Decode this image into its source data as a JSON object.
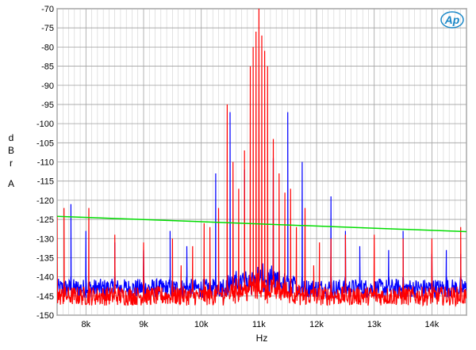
{
  "chart_data": {
    "type": "line",
    "title": "",
    "xlabel": "Hz",
    "ylabel": "dBrA",
    "ylabel_chars": [
      "d",
      "B",
      "r",
      "A"
    ],
    "xlim": [
      7500,
      14600
    ],
    "ylim": [
      -150,
      -70
    ],
    "grid": true,
    "x_major_ticks": [
      8000,
      9000,
      10000,
      11000,
      12000,
      13000,
      14000
    ],
    "x_tick_labels": [
      "8k",
      "9k",
      "10k",
      "11k",
      "12k",
      "13k",
      "14k"
    ],
    "y_ticks": [
      -70,
      -75,
      -80,
      -85,
      -90,
      -95,
      -100,
      -105,
      -110,
      -115,
      -120,
      -125,
      -130,
      -135,
      -140,
      -145,
      -150
    ],
    "y_tick_labels": [
      "-70",
      "-75",
      "-80",
      "-85",
      "-90",
      "-95",
      "-100",
      "-105",
      "-110",
      "-115",
      "-120",
      "-125",
      "-130",
      "-135",
      "-140",
      "-145",
      "-150"
    ],
    "series": [
      {
        "color": "#0000ff",
        "noise_floor": -143,
        "values_x": [
          7740,
          8000,
          8500,
          9000,
          9460,
          9750,
          10250,
          10500,
          10750,
          11250,
          11500,
          11750,
          12250,
          12500,
          12750,
          13250,
          13500,
          14000,
          14250,
          14500
        ],
        "values_y": [
          -121,
          -128,
          -131,
          -133,
          -128,
          -132,
          -113,
          -97,
          -112,
          -109,
          -97,
          -110,
          -119,
          -128,
          -132,
          -133,
          -128,
          -134,
          -133,
          -134
        ]
      },
      {
        "color": "#ff0000",
        "noise_floor": -145,
        "values_x": [
          7500,
          7620,
          8050,
          8500,
          9000,
          9500,
          9650,
          9850,
          10050,
          10150,
          10300,
          10450,
          10550,
          10650,
          10750,
          10850,
          10900,
          10950,
          11000,
          11050,
          11100,
          11150,
          11250,
          11350,
          11450,
          11550,
          11650,
          11800,
          11950,
          12050,
          12250,
          12500,
          13000,
          13500,
          14000,
          14500
        ],
        "values_y": [
          -124,
          -122,
          -122,
          -129,
          -131,
          -130,
          -137,
          -132,
          -126,
          -127,
          -122,
          -95,
          -110,
          -117,
          -107,
          -85,
          -80,
          -76,
          -70,
          -77,
          -81,
          -85,
          -104,
          -113,
          -118,
          -117,
          -127,
          -122,
          -137,
          -131,
          -130,
          -129,
          -129,
          -130,
          -130,
          -127
        ]
      },
      {
        "color": "#00dd00",
        "kind": "limit",
        "values_x": [
          7500,
          14600
        ],
        "values_y": [
          -124.2,
          -128.2
        ]
      }
    ]
  },
  "logo": {
    "text": "Ap",
    "color": "#1a88c8"
  }
}
